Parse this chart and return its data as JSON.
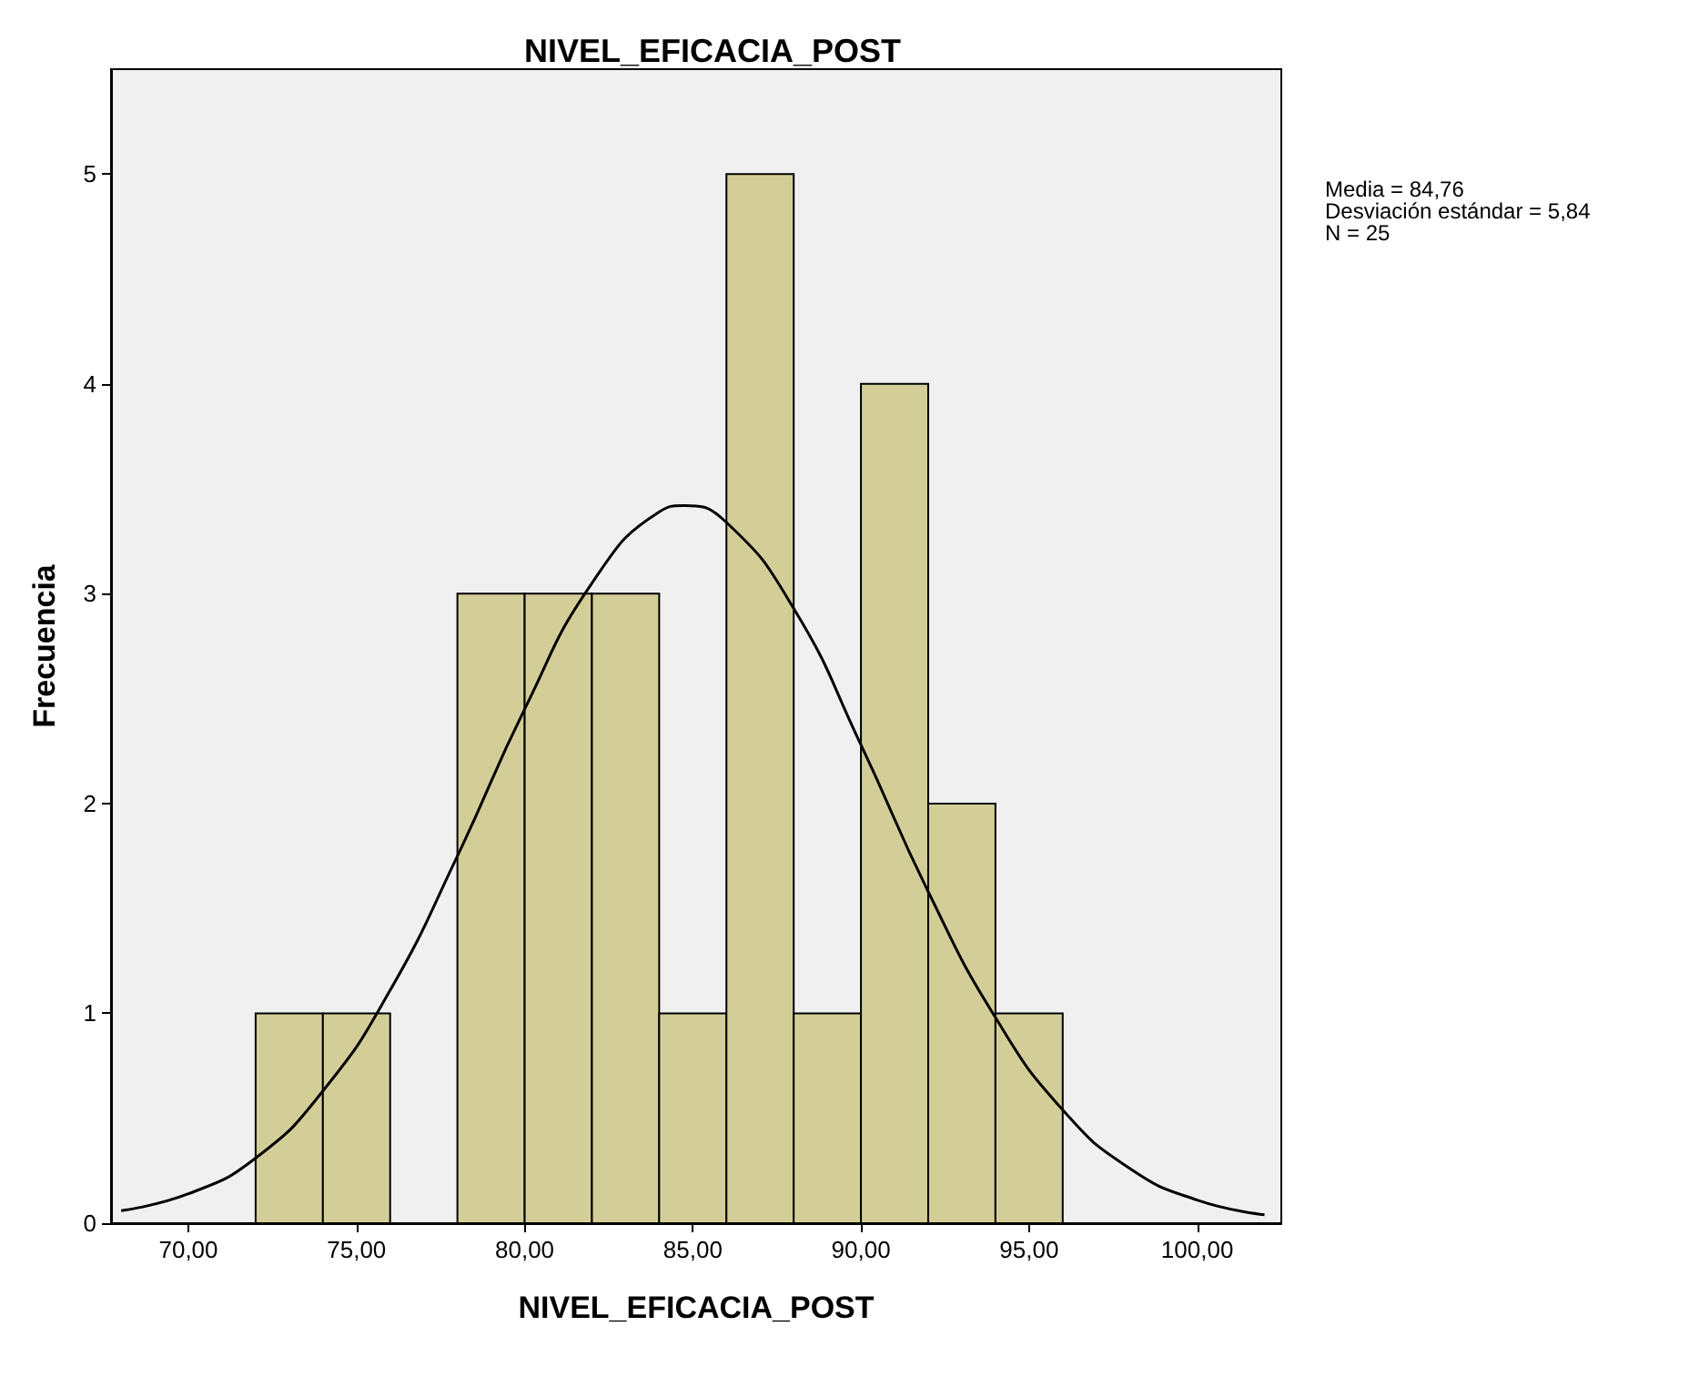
{
  "chart_data": {
    "type": "histogram",
    "title": "NIVEL_EFICACIA_POST",
    "xlabel": "NIVEL_EFICACIA_POST",
    "ylabel": "Frecuencia",
    "bins": [
      72,
      74,
      76,
      78,
      80,
      82,
      84,
      86,
      88,
      90,
      92,
      94,
      96
    ],
    "series": [
      {
        "color": "#d3ce97",
        "values": [
          1,
          1,
          0,
          3,
          3,
          3,
          1,
          5,
          1,
          4,
          2,
          1
        ]
      },
      {
        "type": "line",
        "color": "#000000",
        "x": [
          68,
          70,
          72,
          74,
          76,
          78,
          80,
          82,
          84,
          84.76,
          86,
          88,
          90,
          92,
          94,
          96,
          98,
          100,
          102
        ],
        "values": [
          0.06,
          0.14,
          0.31,
          0.63,
          1.11,
          1.75,
          2.45,
          3.05,
          3.39,
          3.42,
          3.34,
          2.93,
          2.28,
          1.58,
          0.98,
          0.54,
          0.26,
          0.11,
          0.04
        ]
      }
    ],
    "xlim": [
      67.7,
      102.5
    ],
    "ylim": [
      0,
      5.5
    ],
    "xticks": [
      {
        "value": 70,
        "label": "70,00"
      },
      {
        "value": 75,
        "label": "75,00"
      },
      {
        "value": 80,
        "label": "80,00"
      },
      {
        "value": 85,
        "label": "85,00"
      },
      {
        "value": 90,
        "label": "90,00"
      },
      {
        "value": 95,
        "label": "95,00"
      },
      {
        "value": 100,
        "label": "100,00"
      }
    ],
    "yticks": [
      0,
      1,
      2,
      3,
      4,
      5
    ],
    "marker": "none",
    "grid": false,
    "annotations": [
      "Media = 84,76",
      "Desviación estándar = 5,84",
      "N = 25"
    ]
  }
}
